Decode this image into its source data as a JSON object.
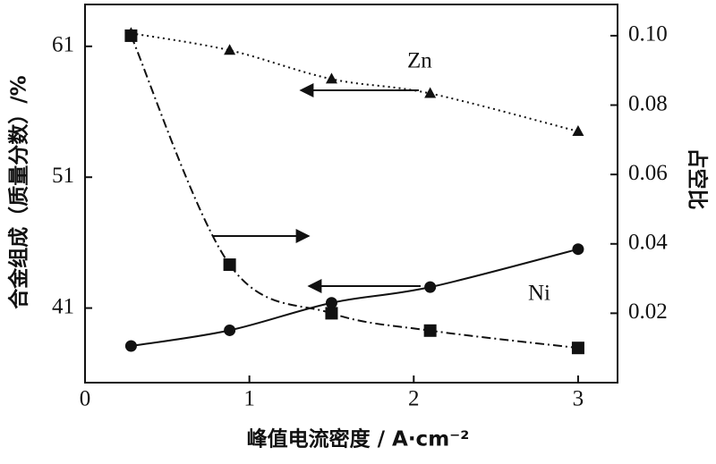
{
  "chart_data": {
    "type": "line",
    "x_label": "峰值电流密度 / A·cm⁻²",
    "y_label": "合金组成（质量分数）/%",
    "y2_label": "占空比",
    "x": [
      0.28,
      0.88,
      1.5,
      2.1,
      3.0
    ],
    "series": [
      {
        "name": "Zn",
        "color": "#111111",
        "marker": "triangle",
        "line": "dotted",
        "values": [
          62.0,
          60.7,
          58.5,
          57.4,
          54.5
        ]
      },
      {
        "name": "Ni",
        "color": "#111111",
        "marker": "circle",
        "line": "solid",
        "values": [
          38.1,
          39.3,
          41.4,
          42.6,
          45.5
        ]
      },
      {
        "color": "#111111",
        "marker": "square",
        "line": "dashdot",
        "axis": "y2",
        "values": [
          0.1,
          0.034,
          0.02,
          0.015,
          0.01
        ]
      }
    ],
    "xlim": [
      0,
      3.24
    ],
    "xticks": [
      0,
      1,
      2,
      3
    ],
    "ylim": [
      35.3,
      64.2
    ],
    "yticks": [
      41,
      51,
      61
    ],
    "y2lim": [
      0,
      0.109
    ],
    "y2ticks": [
      0.02,
      0.04,
      0.06,
      0.08,
      {
        "value": 0.1,
        "label": "0.10"
      }
    ]
  }
}
